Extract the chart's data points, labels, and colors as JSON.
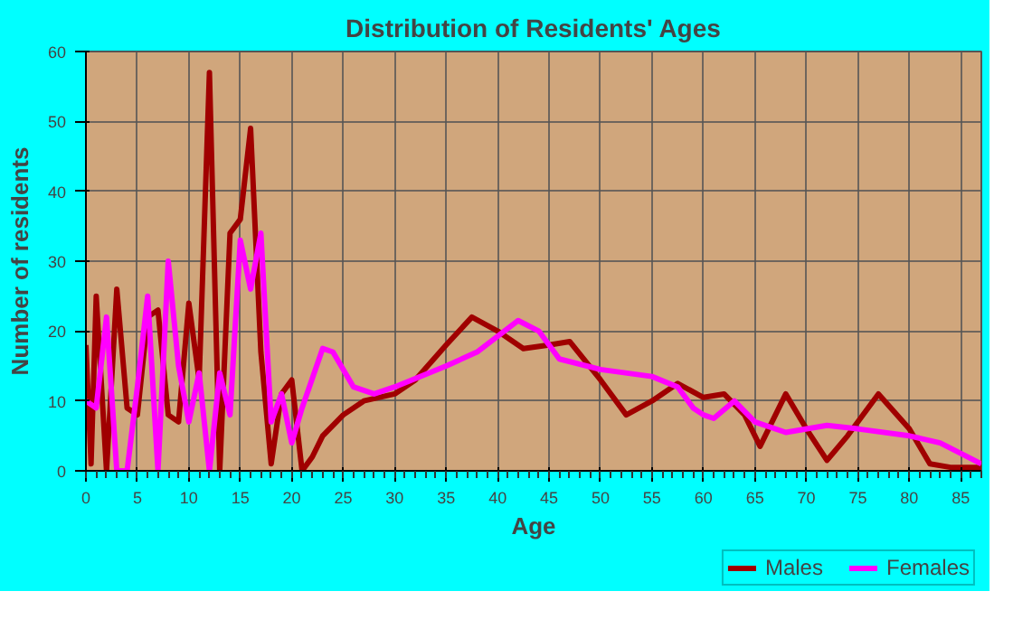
{
  "chart_data": {
    "type": "line",
    "title": "Distribution of Residents' Ages",
    "xlabel": "Age",
    "ylabel": "Number of residents",
    "xlim": [
      0,
      87
    ],
    "ylim": [
      0,
      60
    ],
    "xticks": [
      0,
      5,
      10,
      15,
      20,
      25,
      30,
      35,
      40,
      45,
      50,
      55,
      60,
      65,
      70,
      75,
      80,
      85
    ],
    "yticks": [
      0,
      10,
      20,
      30,
      40,
      50,
      60
    ],
    "grid": true,
    "legend": "bottom right",
    "series": [
      {
        "name": "Males",
        "color": "#a00000",
        "x": [
          0,
          0.5,
          1,
          2,
          3,
          4,
          5,
          6,
          7,
          8,
          9,
          10,
          11,
          12,
          13,
          14,
          15,
          16,
          17,
          18,
          19,
          20,
          21,
          22,
          23,
          25,
          27,
          30,
          32,
          35,
          37.5,
          40,
          42.5,
          45,
          47,
          50,
          52.5,
          55,
          57.5,
          60,
          62,
          64,
          65.5,
          68,
          70,
          72,
          74,
          77,
          80,
          82,
          84,
          87
        ],
        "values": [
          18,
          1,
          25,
          0,
          26,
          9,
          8,
          22,
          23,
          8,
          7,
          24,
          13,
          57,
          0,
          34,
          36,
          49,
          17,
          1,
          11,
          13,
          0,
          2,
          5,
          8,
          10,
          11,
          13,
          18,
          22,
          20,
          17.5,
          18,
          18.5,
          13,
          8,
          10,
          12.5,
          10.5,
          11,
          8,
          3.5,
          11,
          6,
          1.5,
          5,
          11,
          6,
          1,
          0.5,
          0.5
        ]
      },
      {
        "name": "Females",
        "color": "#ff00ff",
        "x": [
          0,
          1,
          2,
          3,
          4,
          5,
          6,
          7,
          8,
          9,
          10,
          11,
          12,
          13,
          14,
          15,
          16,
          17,
          18,
          19,
          20,
          21,
          23,
          24,
          26,
          28,
          30,
          35,
          38,
          42,
          44,
          46,
          50,
          55,
          57.5,
          59,
          60,
          61,
          63,
          65,
          68,
          72,
          75,
          80,
          83,
          87
        ],
        "values": [
          10,
          9,
          22,
          0,
          0,
          12,
          25,
          0,
          30,
          15,
          7,
          14,
          0,
          14,
          8,
          33,
          26,
          34,
          7,
          11,
          4,
          9,
          17.5,
          17,
          12,
          11,
          12,
          15,
          17,
          21.5,
          20,
          16,
          14.5,
          13.5,
          12,
          9,
          8,
          7.5,
          10,
          7,
          5.5,
          6.5,
          6,
          5,
          4,
          1
        ]
      }
    ]
  }
}
